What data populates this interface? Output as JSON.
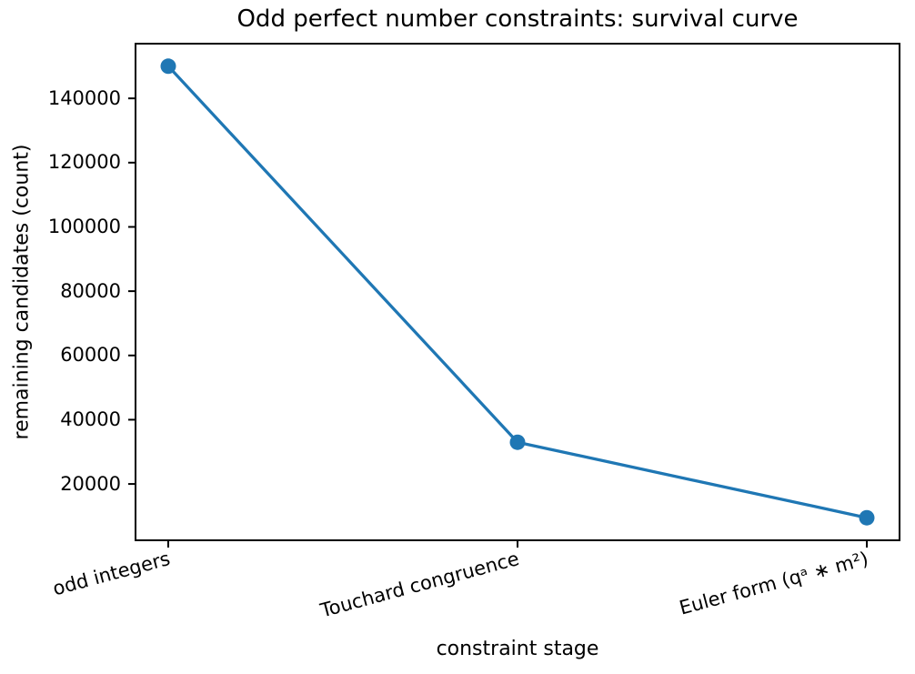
{
  "chart_data": {
    "type": "line",
    "title": "Odd perfect number constraints: survival curve",
    "xlabel": "constraint stage",
    "ylabel": "remaining candidates (count)",
    "categories": [
      "odd integers",
      "Touchard congruence",
      "Euler form (qᵃ ∗ m²)"
    ],
    "values": [
      150000,
      33000,
      9500
    ],
    "yticks": [
      20000,
      40000,
      60000,
      80000,
      100000,
      120000,
      140000
    ],
    "ytick_labels": [
      "20000",
      "40000",
      "60000",
      "80000",
      "100000",
      "120000",
      "140000"
    ],
    "ylim": [
      2475,
      157025
    ],
    "grid": false,
    "legend": "none",
    "line_color": "#1f77b4",
    "marker": "circle",
    "marker_color": "#1f77b4",
    "axis_color": "#000000",
    "text_color": "#000000",
    "background_color": "#ffffff"
  }
}
